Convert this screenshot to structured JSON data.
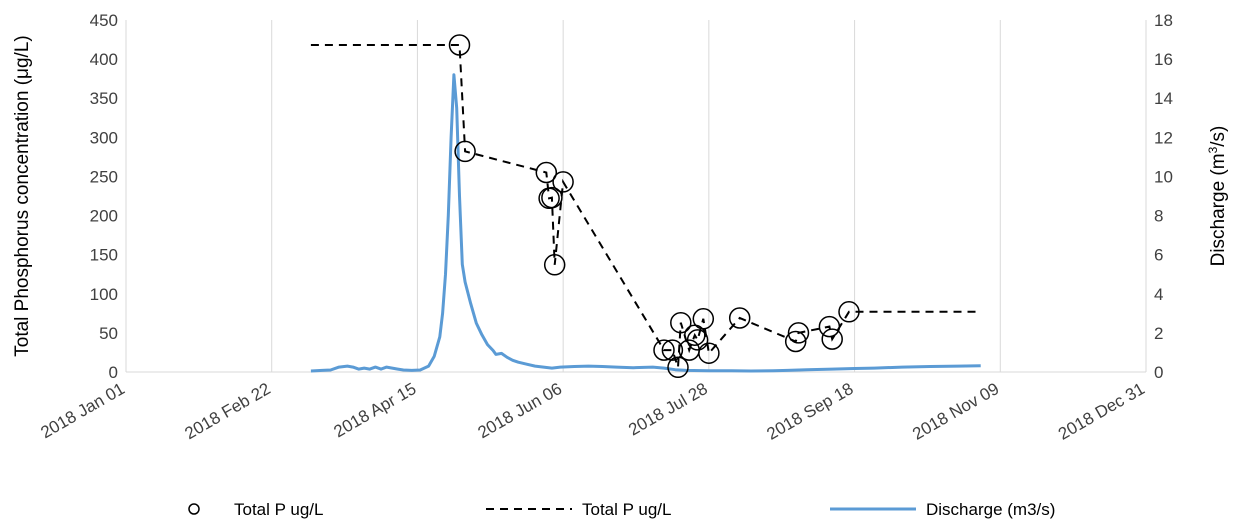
{
  "chart_data": {
    "type": "line",
    "title": "",
    "xlabel": "",
    "ylabel_left": "Total Phosphorus concentration (μg/L)",
    "ylabel_right_prefix": "Discharge (m",
    "ylabel_right_sup": "3",
    "ylabel_right_suffix": "/s)",
    "x_axis": {
      "type": "date",
      "range": [
        "2018-01-01",
        "2018-12-31"
      ],
      "tick_dates": [
        "2018-01-01",
        "2018-02-22",
        "2018-04-15",
        "2018-06-06",
        "2018-07-28",
        "2018-09-18",
        "2018-11-09",
        "2018-12-31"
      ],
      "tick_labels": [
        "2018 Jan 01",
        "2018 Feb 22",
        "2018 Apr 15",
        "2018 Jun 06",
        "2018 Jul 28",
        "2018 Sep 18",
        "2018 Nov 09",
        "2018 Dec 31"
      ]
    },
    "y_left": {
      "min": 0,
      "max": 450,
      "ticks": [
        0,
        50,
        100,
        150,
        200,
        250,
        300,
        350,
        400,
        450
      ]
    },
    "y_right": {
      "min": 0,
      "max": 18,
      "ticks": [
        0,
        2,
        4,
        6,
        8,
        10,
        12,
        14,
        16,
        18
      ]
    },
    "grid": "vertical",
    "legend_position": "bottom",
    "series": [
      {
        "name": "Total P ug/L",
        "kind": "markers",
        "axis": "left",
        "color": "#000000",
        "points": [
          [
            "2018-04-30",
            418
          ],
          [
            "2018-05-02",
            282
          ],
          [
            "2018-05-31",
            255
          ],
          [
            "2018-06-01",
            222
          ],
          [
            "2018-06-02",
            223
          ],
          [
            "2018-06-03",
            137
          ],
          [
            "2018-06-06",
            243
          ],
          [
            "2018-07-12",
            28
          ],
          [
            "2018-07-15",
            28
          ],
          [
            "2018-07-17",
            6
          ],
          [
            "2018-07-18",
            63
          ],
          [
            "2018-07-21",
            28
          ],
          [
            "2018-07-23",
            47
          ],
          [
            "2018-07-24",
            41
          ],
          [
            "2018-07-26",
            68
          ],
          [
            "2018-07-28",
            24
          ],
          [
            "2018-08-08",
            69
          ],
          [
            "2018-08-28",
            39
          ],
          [
            "2018-08-29",
            50
          ],
          [
            "2018-09-09",
            58
          ],
          [
            "2018-09-10",
            42
          ],
          [
            "2018-09-16",
            77
          ]
        ]
      },
      {
        "name": "Total P ug/L",
        "kind": "dashed-line",
        "axis": "left",
        "color": "#000000",
        "points": [
          [
            "2018-03-08",
            418
          ],
          [
            "2018-04-30",
            418
          ],
          [
            "2018-05-02",
            282
          ],
          [
            "2018-05-31",
            255
          ],
          [
            "2018-06-01",
            222
          ],
          [
            "2018-06-02",
            223
          ],
          [
            "2018-06-03",
            137
          ],
          [
            "2018-06-06",
            243
          ],
          [
            "2018-07-12",
            28
          ],
          [
            "2018-07-15",
            28
          ],
          [
            "2018-07-17",
            6
          ],
          [
            "2018-07-18",
            63
          ],
          [
            "2018-07-21",
            28
          ],
          [
            "2018-07-23",
            47
          ],
          [
            "2018-07-24",
            41
          ],
          [
            "2018-07-26",
            68
          ],
          [
            "2018-07-28",
            24
          ],
          [
            "2018-08-08",
            69
          ],
          [
            "2018-08-28",
            39
          ],
          [
            "2018-08-29",
            50
          ],
          [
            "2018-09-09",
            58
          ],
          [
            "2018-09-10",
            42
          ],
          [
            "2018-09-16",
            77
          ],
          [
            "2018-11-02",
            77
          ]
        ]
      },
      {
        "name": "Discharge (m3/s)",
        "kind": "line",
        "axis": "right",
        "color": "#5b9bd5",
        "points": [
          [
            "2018-03-08",
            0.05
          ],
          [
            "2018-03-12",
            0.08
          ],
          [
            "2018-03-15",
            0.1
          ],
          [
            "2018-03-18",
            0.25
          ],
          [
            "2018-03-21",
            0.3
          ],
          [
            "2018-03-23",
            0.25
          ],
          [
            "2018-03-25",
            0.15
          ],
          [
            "2018-03-27",
            0.2
          ],
          [
            "2018-03-29",
            0.15
          ],
          [
            "2018-03-31",
            0.25
          ],
          [
            "2018-04-02",
            0.15
          ],
          [
            "2018-04-04",
            0.25
          ],
          [
            "2018-04-06",
            0.2
          ],
          [
            "2018-04-08",
            0.15
          ],
          [
            "2018-04-10",
            0.1
          ],
          [
            "2018-04-13",
            0.08
          ],
          [
            "2018-04-16",
            0.1
          ],
          [
            "2018-04-19",
            0.3
          ],
          [
            "2018-04-21",
            0.8
          ],
          [
            "2018-04-23",
            1.8
          ],
          [
            "2018-04-24",
            3.0
          ],
          [
            "2018-04-25",
            5.0
          ],
          [
            "2018-04-26",
            8.0
          ],
          [
            "2018-04-27",
            12.0
          ],
          [
            "2018-04-28",
            15.2
          ],
          [
            "2018-04-29",
            13.5
          ],
          [
            "2018-04-30",
            9.0
          ],
          [
            "2018-05-01",
            5.5
          ],
          [
            "2018-05-02",
            4.6
          ],
          [
            "2018-05-04",
            3.5
          ],
          [
            "2018-05-06",
            2.5
          ],
          [
            "2018-05-08",
            1.9
          ],
          [
            "2018-05-10",
            1.4
          ],
          [
            "2018-05-12",
            1.1
          ],
          [
            "2018-05-13",
            0.9
          ],
          [
            "2018-05-15",
            0.95
          ],
          [
            "2018-05-17",
            0.75
          ],
          [
            "2018-05-19",
            0.6
          ],
          [
            "2018-05-21",
            0.5
          ],
          [
            "2018-05-24",
            0.4
          ],
          [
            "2018-05-27",
            0.3
          ],
          [
            "2018-05-30",
            0.25
          ],
          [
            "2018-06-02",
            0.2
          ],
          [
            "2018-06-05",
            0.25
          ],
          [
            "2018-06-10",
            0.28
          ],
          [
            "2018-06-15",
            0.3
          ],
          [
            "2018-06-20",
            0.28
          ],
          [
            "2018-06-25",
            0.25
          ],
          [
            "2018-07-01",
            0.22
          ],
          [
            "2018-07-08",
            0.25
          ],
          [
            "2018-07-12",
            0.2
          ],
          [
            "2018-07-16",
            0.12
          ],
          [
            "2018-07-20",
            0.08
          ],
          [
            "2018-07-28",
            0.06
          ],
          [
            "2018-08-05",
            0.06
          ],
          [
            "2018-08-12",
            0.05
          ],
          [
            "2018-08-20",
            0.06
          ],
          [
            "2018-08-25",
            0.08
          ],
          [
            "2018-09-01",
            0.12
          ],
          [
            "2018-09-10",
            0.15
          ],
          [
            "2018-09-18",
            0.18
          ],
          [
            "2018-09-25",
            0.2
          ],
          [
            "2018-10-05",
            0.25
          ],
          [
            "2018-10-15",
            0.28
          ],
          [
            "2018-10-25",
            0.3
          ],
          [
            "2018-11-02",
            0.32
          ]
        ]
      }
    ]
  }
}
